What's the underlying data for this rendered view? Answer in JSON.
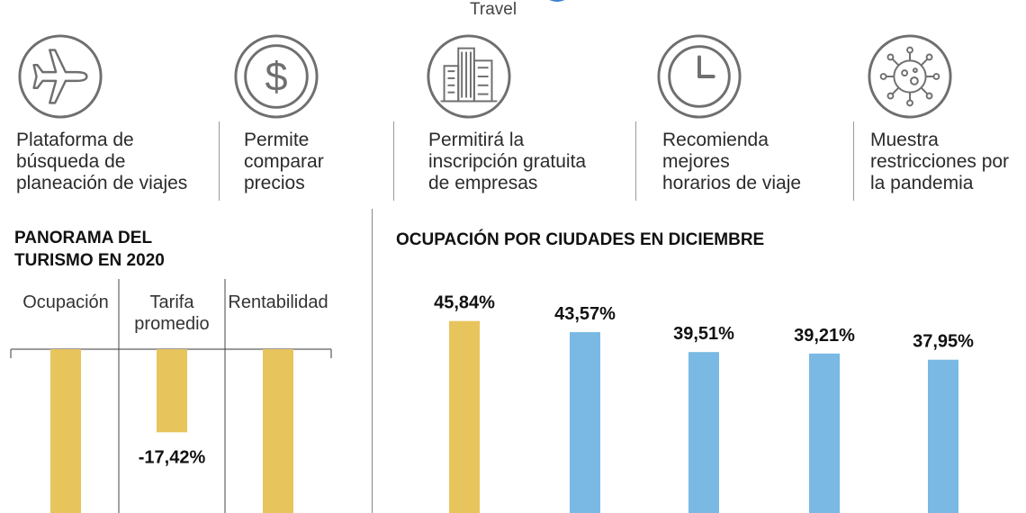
{
  "header": {
    "brand_word": "Travel"
  },
  "features": [
    {
      "icon": "airplane-icon",
      "label": "Plataforma de\nbúsqueda de\nplaneación de viajes"
    },
    {
      "icon": "dollar-icon",
      "label": "Permite\ncomparar\nprecios"
    },
    {
      "icon": "buildings-icon",
      "label": "Permitirá la\ninscripción gratuita\nde empresas"
    },
    {
      "icon": "clock-icon",
      "label": "Recomienda\nmejores\nhorarios de viaje"
    },
    {
      "icon": "virus-icon",
      "label": "Muestra\nrestricciones por\nla pandemia"
    }
  ],
  "panorama": {
    "title": "PANORAMA DEL\nTURISMO EN 2020"
  },
  "ciudades": {
    "title": "OCUPACIÓN POR CIUDADES EN DICIEMBRE"
  },
  "colors": {
    "gold": "#e8c45c",
    "blue": "#79b9e3",
    "rule": "#8a8a8a"
  },
  "chart_data": [
    {
      "type": "bar",
      "title": "PANORAMA DEL TURISMO EN 2020",
      "categories": [
        "Ocupación",
        "Tarifa\npromedio",
        "Rentabilidad"
      ],
      "values": [
        null,
        -17.42,
        null
      ],
      "value_labels": [
        "",
        "-17,42%",
        ""
      ],
      "colors": [
        "#e8c45c",
        "#e8c45c",
        "#e8c45c"
      ]
    },
    {
      "type": "bar",
      "title": "OCUPACIÓN POR CIUDADES EN DICIEMBRE",
      "categories": [
        "",
        "",
        "",
        "",
        ""
      ],
      "values": [
        45.84,
        43.57,
        39.51,
        39.21,
        37.95
      ],
      "value_labels": [
        "45,84%",
        "43,57%",
        "39,51%",
        "39,21%",
        "37,95%"
      ],
      "colors": [
        "#e8c45c",
        "#79b9e3",
        "#79b9e3",
        "#79b9e3",
        "#79b9e3"
      ]
    }
  ]
}
